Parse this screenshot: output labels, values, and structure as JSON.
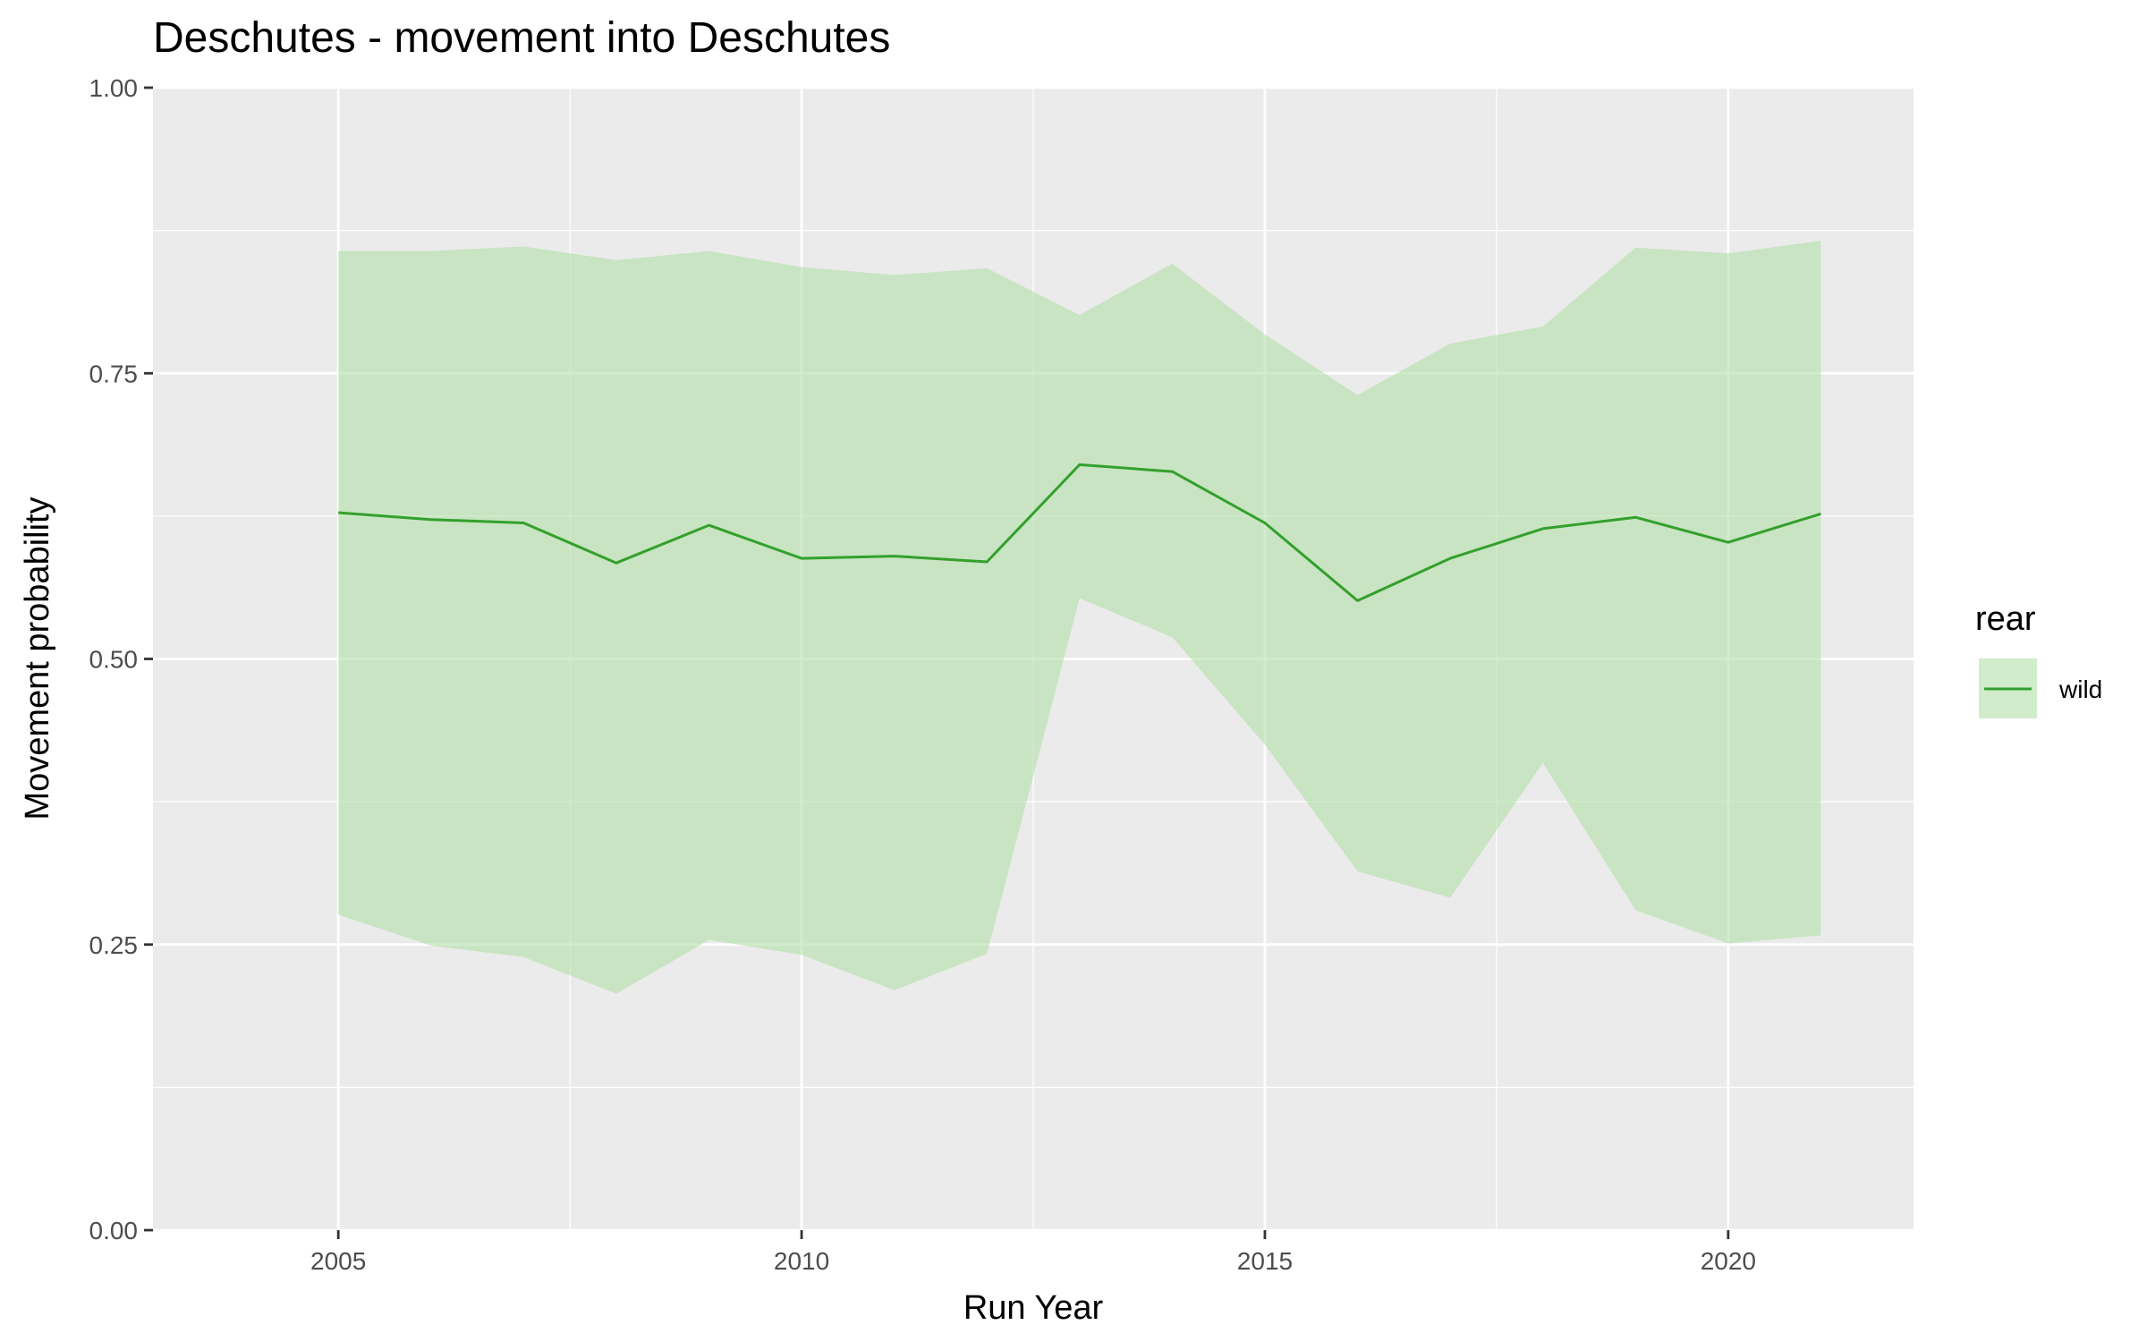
{
  "chart_data": {
    "type": "line",
    "title": "Deschutes - movement into Deschutes",
    "xlabel": "Run Year",
    "ylabel": "Movement probability",
    "xlim": [
      2003,
      2022
    ],
    "ylim": [
      0,
      1
    ],
    "x_ticks": [
      2005,
      2010,
      2015,
      2020
    ],
    "x_tick_labels": [
      "2005",
      "2010",
      "2015",
      "2020"
    ],
    "y_ticks": [
      0,
      0.25,
      0.5,
      0.75,
      1
    ],
    "y_tick_labels": [
      "0.00",
      "0.25",
      "0.50",
      "0.75",
      "1.00"
    ],
    "grid": true,
    "legend": {
      "title": "rear",
      "position": "right"
    },
    "series": [
      {
        "name": "wild",
        "color": "#33a02c",
        "ribbon_color": "#b2dfa6",
        "x": [
          2005,
          2006,
          2007,
          2008,
          2009,
          2010,
          2011,
          2012,
          2013,
          2014,
          2015,
          2016,
          2017,
          2018,
          2019,
          2020,
          2021
        ],
        "y": [
          0.628,
          0.622,
          0.619,
          0.584,
          0.617,
          0.588,
          0.59,
          0.585,
          0.67,
          0.664,
          0.619,
          0.551,
          0.588,
          0.614,
          0.624,
          0.602,
          0.627
        ],
        "lower": [
          0.276,
          0.249,
          0.239,
          0.207,
          0.254,
          0.241,
          0.21,
          0.242,
          0.553,
          0.519,
          0.425,
          0.314,
          0.291,
          0.409,
          0.28,
          0.251,
          0.258
        ],
        "upper": [
          0.857,
          0.857,
          0.861,
          0.849,
          0.857,
          0.843,
          0.836,
          0.842,
          0.801,
          0.846,
          0.784,
          0.731,
          0.776,
          0.791,
          0.86,
          0.855,
          0.866
        ]
      }
    ]
  },
  "legend_items": [
    {
      "label": "wild",
      "icon": "line-swatch"
    }
  ]
}
